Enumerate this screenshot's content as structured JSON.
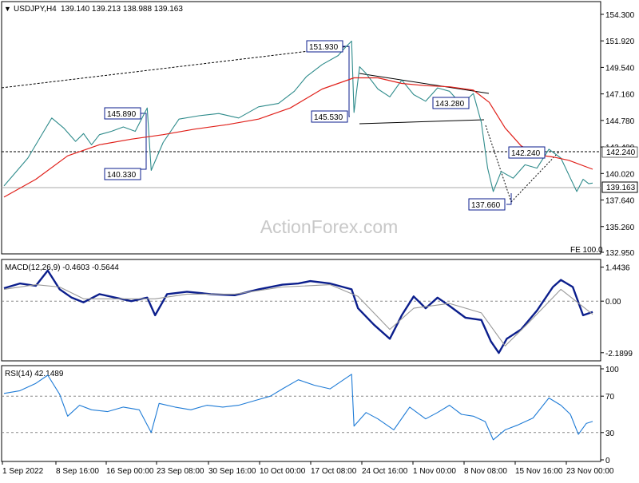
{
  "chart_data": [
    {
      "type": "line",
      "header": {
        "symbol": "USDJPY,H4",
        "ohlc": "139.140 139.213 138.988 139.163"
      },
      "watermark": "ActionForex.com",
      "yticks": [
        "154.300",
        "151.920",
        "149.540",
        "147.160",
        "144.780",
        "142.400",
        "140.020",
        "137.640",
        "135.260",
        "132.950"
      ],
      "ylim": [
        132.95,
        155.3
      ],
      "current_price": "139.163",
      "level_label": "142.240",
      "fib_label": "FE 100.0",
      "annotations": [
        "151.930",
        "145.890",
        "145.530",
        "140.330",
        "143.280",
        "142.240",
        "137.660"
      ],
      "series": [
        {
          "name": "price",
          "color": "#2e8b8b",
          "x": [
            0,
            30,
            50,
            60,
            75,
            90,
            100,
            110,
            120,
            135,
            150,
            165,
            180,
            185,
            200,
            220,
            245,
            270,
            295,
            320,
            345,
            365,
            380,
            400,
            420,
            430,
            437,
            440,
            447,
            455,
            470,
            485,
            500,
            515,
            530,
            545,
            560,
            575,
            590,
            600,
            608,
            615,
            625,
            640,
            655,
            670,
            685,
            700,
            712,
            720,
            728,
            735,
            740
          ],
          "y": [
            138.9,
            141.4,
            143.8,
            145.0,
            144.1,
            142.9,
            143.6,
            142.6,
            143.5,
            143.8,
            144.2,
            143.8,
            145.9,
            140.3,
            142.8,
            144.9,
            145.2,
            145.4,
            145.0,
            146.0,
            146.3,
            147.4,
            148.7,
            149.8,
            150.6,
            151.4,
            151.9,
            145.5,
            149.6,
            149.0,
            147.6,
            146.9,
            148.4,
            147.1,
            146.5,
            147.7,
            147.4,
            146.2,
            147.2,
            144.6,
            140.5,
            138.4,
            140.2,
            139.6,
            140.8,
            140.5,
            142.2,
            141.4,
            139.6,
            138.4,
            139.5,
            139.1,
            139.16
          ]
        },
        {
          "name": "ma",
          "color": "#e0201a",
          "x": [
            0,
            40,
            80,
            120,
            160,
            200,
            240,
            280,
            320,
            360,
            400,
            440,
            470,
            500,
            530,
            560,
            590,
            610,
            630,
            650,
            670,
            690,
            710,
            740
          ],
          "y": [
            137.9,
            139.5,
            141.6,
            142.6,
            143.1,
            143.5,
            144.0,
            144.4,
            144.9,
            145.9,
            147.6,
            148.6,
            148.6,
            148.1,
            147.9,
            147.8,
            147.5,
            146.4,
            144.1,
            142.5,
            141.7,
            141.5,
            141.2,
            140.4
          ]
        }
      ]
    },
    {
      "type": "line",
      "header": "MACD(12,26,9) -0.4603 -0.5644",
      "yticks": [
        "1.4436",
        "0.00",
        "-2.1899"
      ],
      "ylim": [
        -2.4,
        1.6
      ],
      "current_price": "0.00",
      "series": [
        {
          "name": "macd",
          "color": "#0b1e8c",
          "x": [
            0,
            20,
            40,
            55,
            70,
            85,
            100,
            120,
            140,
            160,
            180,
            190,
            205,
            230,
            260,
            290,
            320,
            350,
            370,
            385,
            410,
            437,
            445,
            465,
            485,
            500,
            515,
            530,
            545,
            560,
            580,
            600,
            612,
            622,
            632,
            650,
            670,
            690,
            700,
            715,
            728,
            740
          ],
          "y": [
            0.55,
            0.75,
            0.65,
            1.3,
            0.5,
            0.15,
            -0.05,
            0.3,
            0.15,
            0.0,
            0.15,
            -0.6,
            0.3,
            0.4,
            0.3,
            0.25,
            0.5,
            0.7,
            0.75,
            0.85,
            0.75,
            0.5,
            -0.3,
            -1.0,
            -1.6,
            -0.6,
            0.2,
            -0.3,
            0.15,
            -0.2,
            -0.7,
            -0.8,
            -1.7,
            -2.2,
            -1.6,
            -1.2,
            -0.4,
            0.6,
            0.9,
            0.6,
            -0.6,
            -0.46
          ]
        },
        {
          "name": "signal",
          "color": "#999999",
          "x": [
            0,
            40,
            70,
            100,
            140,
            190,
            230,
            290,
            350,
            410,
            445,
            485,
            515,
            560,
            600,
            630,
            660,
            700,
            740
          ],
          "y": [
            0.5,
            0.7,
            0.6,
            0.1,
            0.1,
            0.1,
            0.3,
            0.3,
            0.6,
            0.7,
            0.2,
            -1.2,
            -0.3,
            -0.1,
            -0.5,
            -1.9,
            -0.9,
            0.5,
            -0.56
          ]
        }
      ]
    },
    {
      "type": "line",
      "header": "RSI(14) 42.1489",
      "yticks": [
        "100",
        "70",
        "30",
        "0"
      ],
      "ylim": [
        0,
        100
      ],
      "series": [
        {
          "name": "rsi",
          "color": "#1e7bd6",
          "x": [
            0,
            20,
            40,
            55,
            70,
            80,
            95,
            110,
            130,
            150,
            170,
            185,
            195,
            215,
            235,
            255,
            275,
            295,
            315,
            335,
            350,
            370,
            390,
            410,
            437,
            440,
            455,
            470,
            490,
            510,
            530,
            545,
            560,
            575,
            590,
            605,
            615,
            630,
            645,
            665,
            685,
            700,
            712,
            722,
            732,
            740
          ],
          "y": [
            73,
            76,
            84,
            93,
            72,
            48,
            60,
            55,
            53,
            58,
            55,
            30,
            62,
            58,
            55,
            60,
            58,
            60,
            65,
            70,
            78,
            88,
            82,
            78,
            94,
            37,
            52,
            45,
            33,
            58,
            45,
            52,
            60,
            50,
            48,
            42,
            22,
            33,
            38,
            46,
            68,
            60,
            50,
            28,
            40,
            42.15
          ]
        }
      ],
      "grid": [
        70,
        30
      ]
    }
  ],
  "xticks": [
    "1 Sep 2022",
    "8 Sep 16:00",
    "16 Sep 00:00",
    "23 Sep 08:00",
    "30 Sep 16:00",
    "10 Oct 00:00",
    "17 Oct 08:00",
    "24 Oct 16:00",
    "1 Nov 00:00",
    "8 Nov 08:00",
    "15 Nov 16:00",
    "23 Nov 00:00"
  ]
}
